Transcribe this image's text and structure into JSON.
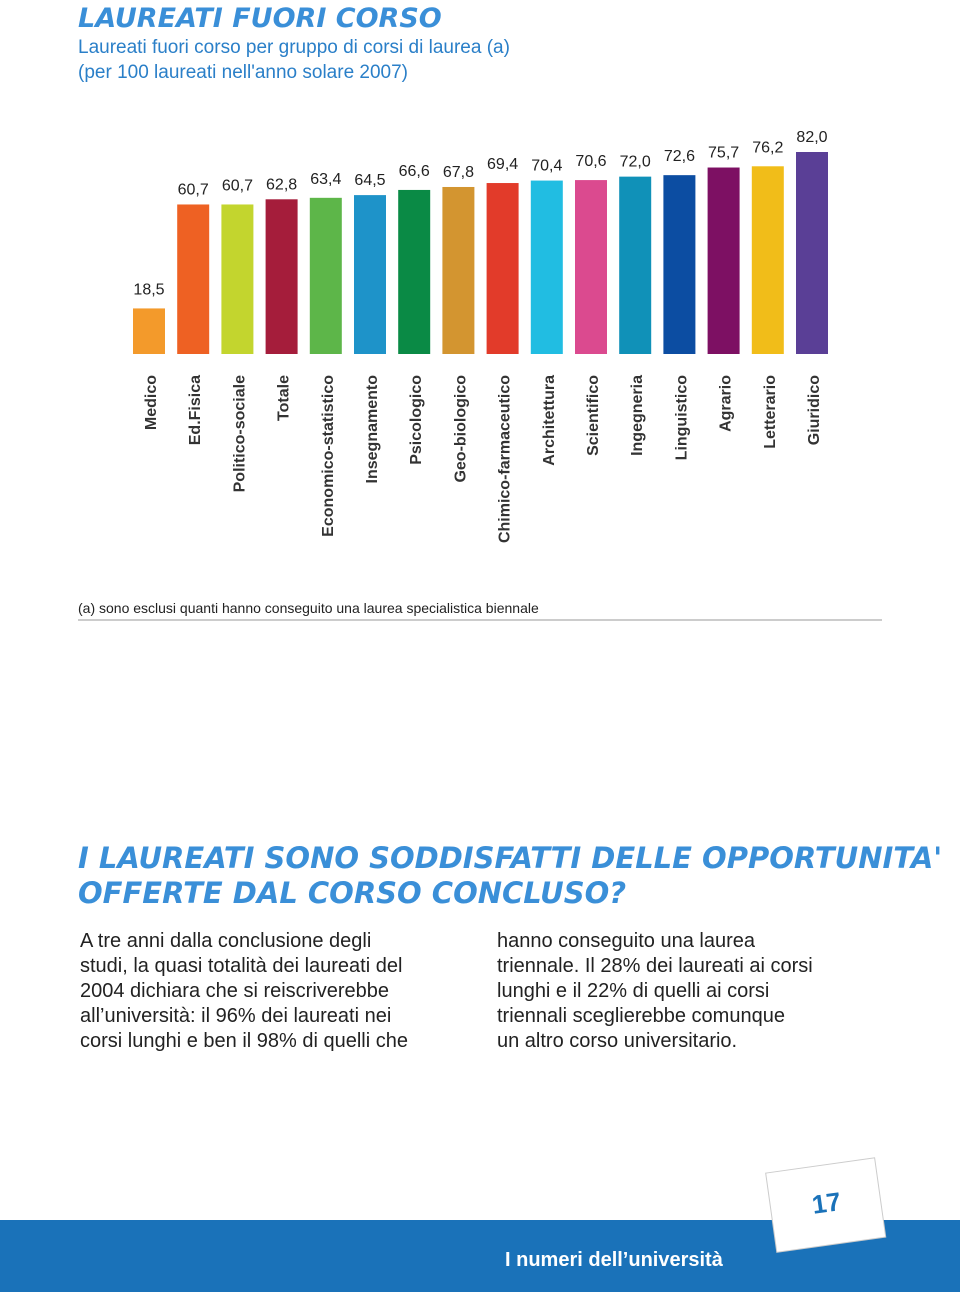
{
  "header": {
    "title": "Laureati fuori corso",
    "subtitle_lines": [
      "Laureati fuori corso per gruppo di corsi di laurea (a)",
      "(per 100 laureati nell'anno solare 2007)"
    ]
  },
  "chart_data": {
    "type": "bar",
    "categories": [
      "Medico",
      "Ed.Fisica",
      "Politico-sociale",
      "Totale",
      "Economico-statistico",
      "Insegnamento",
      "Psicologico",
      "Geo-biologico",
      "Chimico-farmaceutico",
      "Architettura",
      "Scientifico",
      "Ingegneria",
      "Linguistico",
      "Agrario",
      "Letterario",
      "Giuridico"
    ],
    "values": [
      18.5,
      60.7,
      60.7,
      62.8,
      63.4,
      64.5,
      66.6,
      67.8,
      69.4,
      70.4,
      70.6,
      72.0,
      72.6,
      75.7,
      76.2,
      82.0
    ],
    "value_labels": [
      "18,5",
      "60,7",
      "60,7",
      "62,8",
      "63,4",
      "64,5",
      "66,6",
      "67,8",
      "69,4",
      "70,4",
      "70,6",
      "72,0",
      "72,6",
      "75,7",
      "76,2",
      "82,0"
    ],
    "colors": [
      "#f39a2b",
      "#ee6123",
      "#c3d52e",
      "#a51d3b",
      "#5db649",
      "#1e93c9",
      "#0a8a45",
      "#d39530",
      "#e23b2a",
      "#21bde2",
      "#db4a8f",
      "#1091b8",
      "#0c4da2",
      "#7d1063",
      "#f1bd19",
      "#5a3f96"
    ],
    "ylim": [
      0,
      82
    ],
    "footnote": "(a) sono esclusi quanti hanno conseguito una laurea specialistica biennale"
  },
  "section": {
    "heading_lines": [
      "I laureati sono soddisfatti delle opportunita'",
      "offerte dal corso concluso?"
    ],
    "columns": [
      [
        "A tre anni dalla conclusione degli",
        "studi, la quasi totalità dei laureati del",
        "2004 dichiara che si reiscriverebbe",
        "all’università: il 96% dei laureati nei",
        "corsi lunghi e ben il 98% di quelli che"
      ],
      [
        "hanno conseguito una laurea",
        "triennale. Il 28% dei laureati ai corsi",
        "lunghi e il 22% di quelli ai corsi",
        "triennali sceglierebbe comunque",
        "un altro corso universitario."
      ]
    ]
  },
  "footer": {
    "label": "I numeri dell’università",
    "page": "17"
  }
}
